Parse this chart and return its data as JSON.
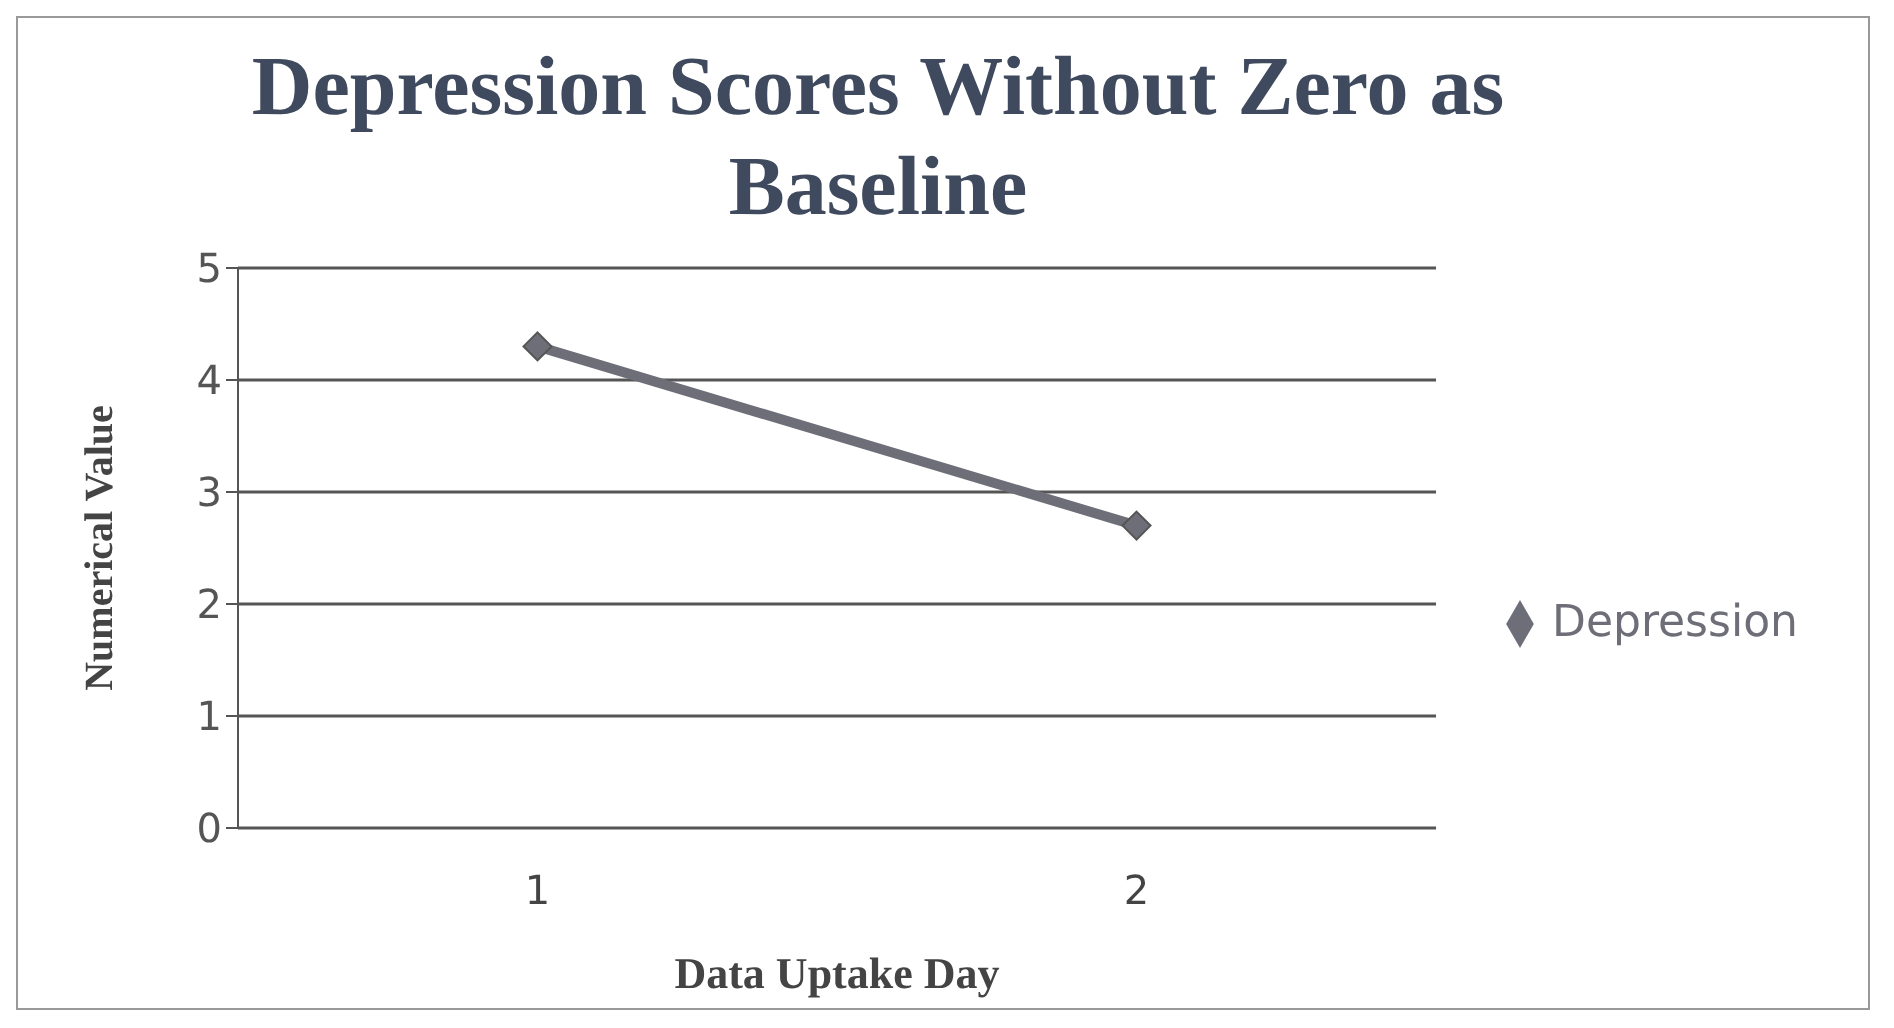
{
  "chart_data": {
    "type": "line",
    "title": "Depression Scores Without Zero as Baseline",
    "xlabel": "Data Uptake Day",
    "ylabel": "Numerical Value",
    "categories": [
      "1",
      "2"
    ],
    "series": [
      {
        "name": "Depression",
        "color": "#6e6e78",
        "values": [
          4.3,
          2.7
        ]
      }
    ],
    "ylim": [
      0,
      5
    ],
    "yticks": [
      0,
      1,
      2,
      3,
      4,
      5
    ],
    "grid": "y",
    "legend": "right",
    "marker": "diamond",
    "line_style": "solid"
  }
}
